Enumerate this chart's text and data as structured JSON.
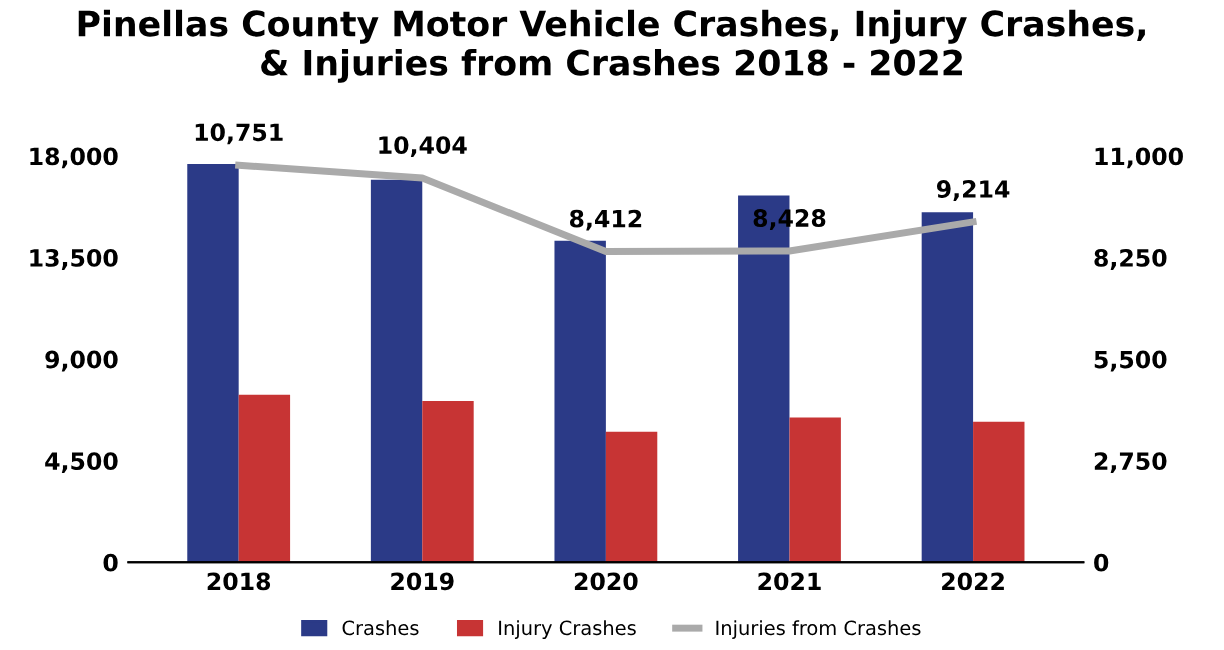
{
  "chart_data": {
    "type": "bar",
    "title": "Pinellas County Motor Vehicle Crashes, Injury Crashes,\n& Injuries from Crashes 2018 - 2022",
    "categories": [
      "2018",
      "2019",
      "2020",
      "2021",
      "2022"
    ],
    "series": [
      {
        "name": "Crashes",
        "color": "#2b3a87",
        "values": [
          17650,
          16950,
          14250,
          16250,
          15510
        ]
      },
      {
        "name": "Injury Crashes",
        "color": "#c73434",
        "values": [
          7420,
          7140,
          5780,
          6410,
          6230
        ]
      },
      {
        "name": "Injuries from Crashes",
        "type": "line",
        "axis": "y2",
        "color": "#aaaaaa",
        "values": [
          10751,
          10404,
          8412,
          8428,
          9214
        ],
        "value_labels": [
          "10,751",
          "10,404",
          "8,412",
          "8,428",
          "9,214"
        ]
      }
    ],
    "ylim": [
      0,
      18000
    ],
    "yticks": [
      {
        "value": 0,
        "label": "0"
      },
      {
        "value": 4500,
        "label": "4,500"
      },
      {
        "value": 9000,
        "label": "9,000"
      },
      {
        "value": 13500,
        "label": "13,500"
      },
      {
        "value": 18000,
        "label": "18,000"
      }
    ],
    "y2lim": [
      0,
      11000
    ],
    "y2ticks": [
      {
        "value": 0,
        "label": "0"
      },
      {
        "value": 2750,
        "label": "2,750"
      },
      {
        "value": 5500,
        "label": "5,500"
      },
      {
        "value": 8250,
        "label": "8,250"
      },
      {
        "value": 11000,
        "label": "11,000"
      }
    ],
    "legend": "bottom",
    "grid": false,
    "marker": "none",
    "line_style": "solid"
  }
}
